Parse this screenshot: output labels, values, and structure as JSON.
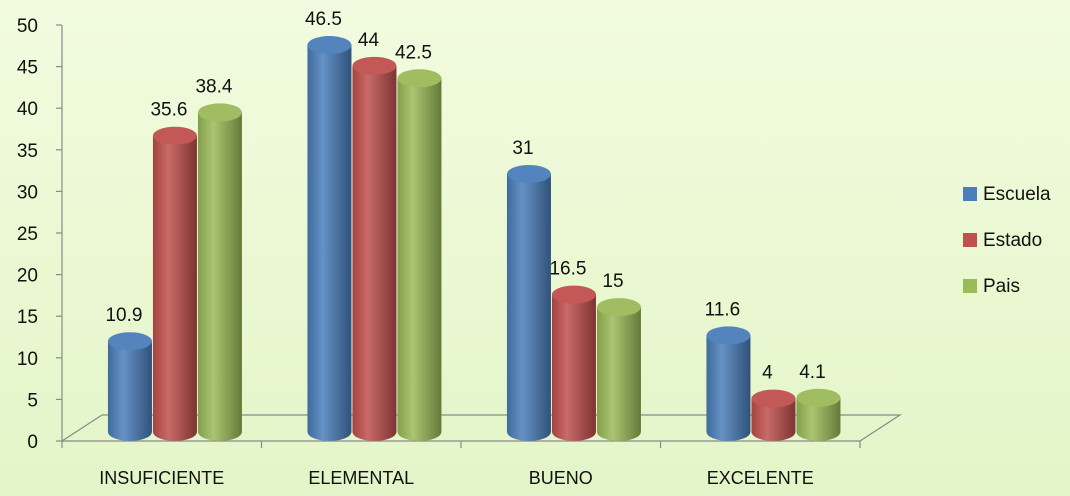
{
  "chart_data": {
    "type": "bar",
    "title": "",
    "xlabel": "",
    "ylabel": "",
    "ylim": [
      0,
      50
    ],
    "yticks": [
      0,
      5,
      10,
      15,
      20,
      25,
      30,
      35,
      40,
      45,
      50
    ],
    "categories": [
      "INSUFICIENTE",
      "ELEMENTAL",
      "BUENO",
      "EXCELENTE"
    ],
    "series": [
      {
        "name": "Escuela",
        "values": [
          10.9,
          46.5,
          31,
          11.6
        ],
        "labels": [
          "10.9",
          "46.5",
          "31",
          "11.6"
        ],
        "color": "#4a7ebb"
      },
      {
        "name": "Estado",
        "values": [
          35.6,
          44,
          16.5,
          4
        ],
        "labels": [
          "35.6",
          "44",
          "16.5",
          "4"
        ],
        "color": "#c0504d"
      },
      {
        "name": "Pais",
        "values": [
          38.4,
          42.5,
          15,
          4.1
        ],
        "labels": [
          "38.4",
          "42.5",
          "15",
          "4.1"
        ],
        "color": "#9bbb59"
      }
    ],
    "legend_position": "right",
    "grid": false,
    "style": "3d-cylinder"
  }
}
